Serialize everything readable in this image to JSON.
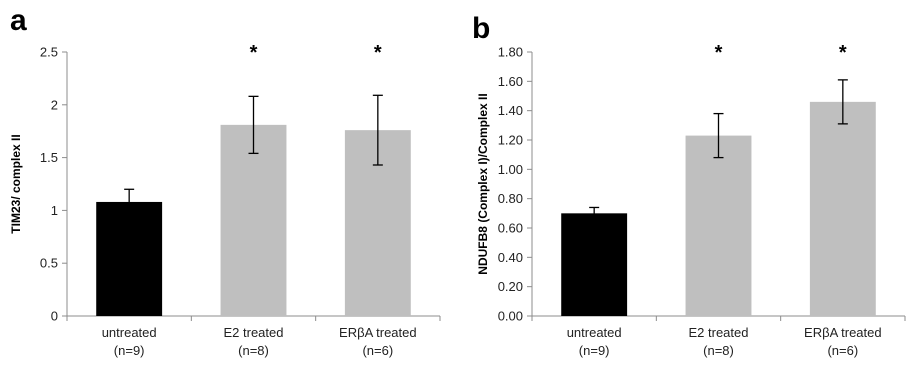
{
  "chart_data": [
    {
      "type": "bar",
      "panel": "a",
      "categories": [
        {
          "name": "untreated",
          "n": "(n=9)"
        },
        {
          "name": "E2 treated",
          "n": "(n=8)"
        },
        {
          "name": "ERβA treated",
          "n": "(n=6)"
        }
      ],
      "values": [
        1.08,
        1.81,
        1.76
      ],
      "errors": [
        0.12,
        0.27,
        0.33
      ],
      "significance": [
        "",
        "*",
        "*"
      ],
      "colors": [
        "#000000",
        "#bfbfbf",
        "#bfbfbf"
      ],
      "ylabel": "TIM23/ complex II",
      "xlabel": "",
      "ylim": [
        0,
        2.5
      ],
      "yticks": [
        "0",
        "0.5",
        "1",
        "1.5",
        "2",
        "2.5"
      ],
      "ytick_values": [
        0,
        0.5,
        1,
        1.5,
        2,
        2.5
      ],
      "grid": false
    },
    {
      "type": "bar",
      "panel": "b",
      "categories": [
        {
          "name": "untreated",
          "n": "(n=9)"
        },
        {
          "name": "E2 treated",
          "n": "(n=8)"
        },
        {
          "name": "ERβA treated",
          "n": "(n=6)"
        }
      ],
      "values": [
        0.7,
        1.23,
        1.46
      ],
      "errors": [
        0.04,
        0.15,
        0.15
      ],
      "significance": [
        "",
        "*",
        "*"
      ],
      "colors": [
        "#000000",
        "#bfbfbf",
        "#bfbfbf"
      ],
      "ylabel": "NDUFB8 (Complex I)/Complex II",
      "xlabel": "",
      "ylim": [
        0,
        1.8
      ],
      "yticks": [
        "0.00",
        "0.20",
        "0.40",
        "0.60",
        "0.80",
        "1.00",
        "1.20",
        "1.40",
        "1.60",
        "1.80"
      ],
      "ytick_values": [
        0,
        0.2,
        0.4,
        0.6,
        0.8,
        1.0,
        1.2,
        1.4,
        1.6,
        1.8
      ],
      "grid": false
    }
  ]
}
